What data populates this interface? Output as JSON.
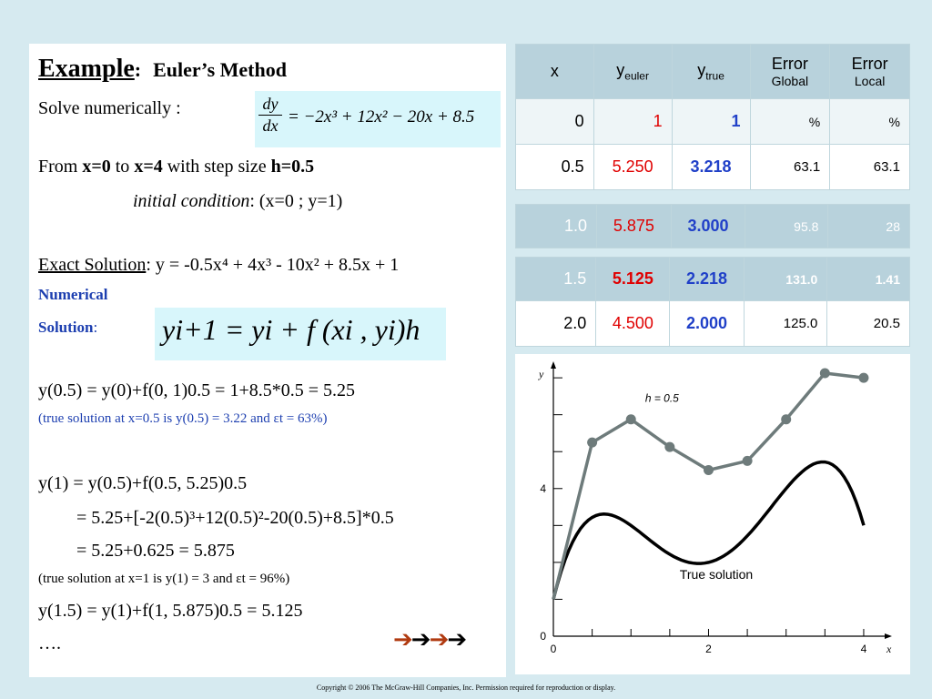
{
  "left": {
    "title": "Example",
    "subtitle": "Euler’s Method",
    "solve_label": "Solve numerically :",
    "ode": {
      "num": "dy",
      "den": "dx",
      "rhs": "= −2x³ + 12x² − 20x + 8.5"
    },
    "from_line": {
      "from": "From ",
      "x0": "x=0",
      "to": " to ",
      "x1": "x=4",
      "with": " with step size ",
      "h": "h=0.5"
    },
    "initial": {
      "label": "initial condition",
      "rest": ":   (x=0 ; y=1)"
    },
    "exact": {
      "label": "Exact Solution",
      "rest": ": y = -0.5x⁴ + 4x³ - 10x² + 8.5x + 1"
    },
    "numerical_1": "Numerical",
    "numerical_2": "Solution",
    "numerical_colon": ":",
    "euler_formula": "yi+1 = yi + f (xi , yi)h",
    "step1": "y(0.5) = y(0)+f(0, 1)0.5 = 1+8.5*0.5 = 5.25",
    "note1": "(true solution at x=0.5 is y(0.5) = 3.22  and εt = 63%)",
    "step2": "y(1) = y(0.5)+f(0.5, 5.25)0.5",
    "step2b": "= 5.25+[-2(0.5)³+12(0.5)²-20(0.5)+8.5]*0.5",
    "step2c": "= 5.25+0.625 = 5.875",
    "note2": "(true solution at x=1 is y(1) = 3 and  εt = 96%)",
    "step3": "y(1.5) = y(1)+f(1, 5.875)0.5 = 5.125",
    "dots": "….",
    "arrow_colors": [
      "#b03a10",
      "#000000",
      "#b03a10",
      "#000000"
    ]
  },
  "table": {
    "headers": [
      {
        "main": "x",
        "sub": ""
      },
      {
        "main": "y",
        "sub": "euler"
      },
      {
        "main": "y",
        "sub": "true"
      },
      {
        "main": "Error",
        "sub": "Global"
      },
      {
        "main": "Error",
        "sub": "Local"
      }
    ],
    "rows": [
      [
        "0",
        "1",
        "1",
        "%",
        "%"
      ],
      [
        "0.5",
        "5.250",
        "3.218",
        "63.1",
        "63.1"
      ],
      [
        "1.0",
        "5.875",
        "3.000",
        "95.8",
        "28"
      ],
      [
        "1.5",
        "5.125",
        "2.218",
        "131.0",
        "1.41"
      ],
      [
        "2.0",
        "4.500",
        "2.000",
        "125.0",
        "20.5"
      ]
    ]
  },
  "chart_data": {
    "type": "line",
    "xlabel": "x",
    "ylabel": "y",
    "xlim": [
      0,
      4.2
    ],
    "ylim": [
      0,
      7.2
    ],
    "x_ticks": [
      "0",
      "2",
      "4"
    ],
    "y_ticks": [
      "0",
      "4"
    ],
    "series": [
      {
        "name": "h = 0.5",
        "color": "#6e7b7b",
        "markers": true,
        "x": [
          0,
          0.5,
          1,
          1.5,
          2,
          2.5,
          3,
          3.5,
          4
        ],
        "y": [
          1,
          5.25,
          5.875,
          5.125,
          4.5,
          4.75,
          5.875,
          7.125,
          7
        ]
      },
      {
        "name": "True solution",
        "color": "#000000",
        "markers": false,
        "x": [
          0,
          0.5,
          1,
          1.5,
          2,
          2.5,
          3,
          3.5,
          4
        ],
        "y": [
          1,
          3.22,
          3,
          2.22,
          2,
          2.72,
          4,
          4.72,
          3
        ]
      }
    ],
    "annotations": [
      "h = 0.5",
      "True solution"
    ]
  },
  "footer": "Copyright © 2006 The McGraw-Hill Companies, Inc.  Permission required for reproduction or display."
}
